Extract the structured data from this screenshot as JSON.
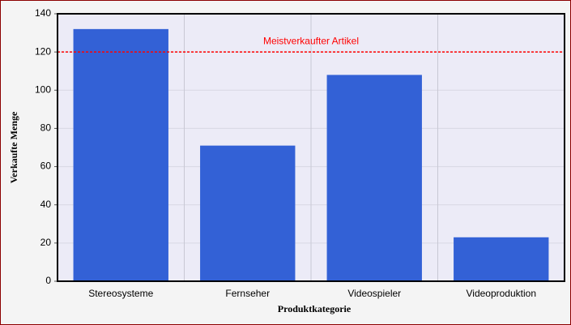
{
  "chart_data": {
    "type": "bar",
    "x_label": "Produktkategorie",
    "y_label": "Verkaufte Menge",
    "categories": [
      "Stereosysteme",
      "Fernseher",
      "Videospieler",
      "Videoproduktion"
    ],
    "values": [
      132,
      71,
      108,
      23
    ],
    "color": "#3361d6",
    "ylim": [
      0,
      140
    ],
    "yticks": [
      0,
      20,
      40,
      60,
      80,
      100,
      120,
      140
    ],
    "grid": true,
    "reference_line": {
      "value": 120,
      "label": "Meistverkaufter Artikel",
      "color": "#ff0000"
    }
  }
}
